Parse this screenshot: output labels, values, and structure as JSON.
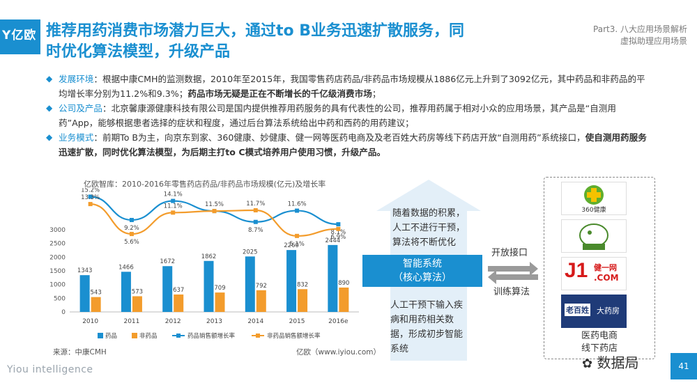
{
  "header": {
    "logo": "亿欧",
    "title_line1": "推荐用药消费市场潜力巨大，通过to B业务迅速扩散服务，同",
    "title_line2": "时优化算法模型，升级产品",
    "part_line1": "Part3. 八大应用场景解析",
    "part_line2": "虚拟助理应用场景"
  },
  "bullets": [
    {
      "label": "发展环境",
      "text": "：根据中康CMH的监测数据，2010年至2015年，我国零售药店药品/非药品市场规模从1886亿元上升到了3092亿元，其中药品和非药品的平均增长率分别为11.2%和9.3%；",
      "bold": "药品市场无疑是正在不断增长的千亿级消费市场",
      "tail": "；"
    },
    {
      "label": "公司及产品",
      "text": "：北京馨康源健康科技有限公司是国内提供推荐用药服务的具有代表性的公司，推荐用药属于相对小众的应用场景，其产品是“自测用药”App，能够根据患者选择的症状和程度，通过后台算法系统给出中药和西药的用药建议；",
      "bold": "",
      "tail": ""
    },
    {
      "label": "业务模式",
      "text": "：前期To B为主，向京东到家、360健康、妙健康、健一网等医药电商及及老百姓大药房等线下药店开放“自测用药”系统接口，",
      "bold": "使自测用药服务迅速扩散，同时优化算法模型，为后期主打to C模式培养用户使用习惯，升级产品。",
      "tail": ""
    }
  ],
  "chart": {
    "title": "亿欧智库：2010-2016年零售药店药品/非药品市场规模(亿元)及增长率",
    "source": "来源：中康CMH",
    "watermark": "亿欧（www.iyiou.com）"
  },
  "chart_data": {
    "type": "bar",
    "categories": [
      "2010",
      "2011",
      "2012",
      "2013",
      "2014",
      "2015",
      "2016e"
    ],
    "ylim": [
      0,
      3000
    ],
    "yticks": [
      "0",
      "500",
      "1000",
      "1500",
      "2000",
      "2500",
      "3000"
    ],
    "series": [
      {
        "name": "药品",
        "kind": "bar",
        "color": "#1a8fd0",
        "values": [
          1343,
          1466,
          1672,
          1862,
          2025,
          2260,
          2444
        ]
      },
      {
        "name": "非药品",
        "kind": "bar",
        "color": "#f39c2c",
        "values": [
          543,
          573,
          637,
          709,
          792,
          832,
          890
        ]
      },
      {
        "name": "药品销售额增长率",
        "kind": "line",
        "color": "#1a8fd0",
        "values": [
          15.2,
          9.2,
          14.1,
          11.5,
          8.7,
          11.6,
          8.1
        ],
        "labels": [
          "15.2%",
          "9.2%",
          "14.1%",
          "11.5%",
          "8.7%",
          "11.6%",
          "8.1%"
        ]
      },
      {
        "name": "非药品销售额增长率",
        "kind": "line",
        "color": "#f39c2c",
        "values": [
          13.3,
          5.6,
          11.1,
          11.5,
          11.7,
          5.1,
          6.9
        ],
        "labels": [
          "13.3%",
          "5.6%",
          "11.1%",
          "",
          "11.7%",
          "5.1%",
          "6.9%"
        ]
      }
    ]
  },
  "panel": {
    "top_line1": "随着数据的积累，",
    "top_line2": "人工不进行干预，",
    "top_line3": "算法将不断优化",
    "core_line1": "智能系统",
    "core_line2": "（核心算法）",
    "bot_line1": "人工干预下输入疾",
    "bot_line2": "病和用药相关数",
    "bot_line3": "据，形成初步智能",
    "bot_line4": "系统",
    "open_label": "开放接口",
    "train_label": "训练算法"
  },
  "partners": {
    "logo1_text": "360健康",
    "logo3_main": "J1",
    "logo3_cn": "健一网",
    "logo3_com": ".COM",
    "logo4_a": "老百姓",
    "logo4_b": "大药房",
    "caption_line1": "医药电商",
    "caption_line2": "线下药店"
  },
  "footer": {
    "brand": "Yiou intelligence",
    "wechat": "数据局",
    "page": "41"
  },
  "colors": {
    "accent": "#1a8fd0",
    "orange": "#f39c2c"
  }
}
